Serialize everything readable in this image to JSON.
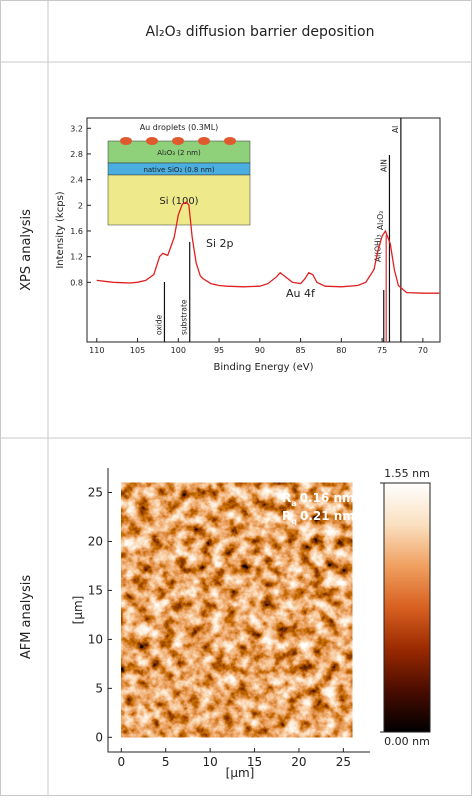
{
  "header": {
    "title": "Al₂O₃ diffusion barrier deposition"
  },
  "rows": [
    {
      "label": "XPS analysis"
    },
    {
      "label": "AFM analysis"
    }
  ],
  "chart_data": [
    {
      "type": "line",
      "xlabel": "Binding Energy (eV)",
      "ylabel": "Intensity (kcps)",
      "color": "#e02020",
      "xlim": [
        111.2,
        67.9
      ],
      "xticks": [
        110,
        105,
        100,
        95,
        90,
        85,
        80,
        75,
        70
      ],
      "ylim": [
        -0.13,
        3.36
      ],
      "yticks": [
        0.8,
        1.2,
        1.6,
        2.0,
        2.4,
        2.8,
        3.2
      ],
      "x": [
        110,
        108,
        106,
        105,
        104,
        103,
        102.3,
        101.9,
        101.3,
        100.5,
        100,
        99.5,
        99,
        98.7,
        98.3,
        97.8,
        97.3,
        97,
        96,
        95,
        94,
        92,
        90,
        89,
        88,
        87.5,
        87,
        86,
        85,
        84.5,
        84,
        83.5,
        83,
        82,
        80,
        78,
        77,
        76,
        75.5,
        75,
        74.6,
        74,
        73.5,
        73,
        72,
        70,
        68
      ],
      "values": [
        0.83,
        0.8,
        0.79,
        0.8,
        0.83,
        0.92,
        1.2,
        1.25,
        1.22,
        1.5,
        1.85,
        2.02,
        2.05,
        2.0,
        1.5,
        1.1,
        0.9,
        0.86,
        0.78,
        0.75,
        0.74,
        0.73,
        0.74,
        0.78,
        0.88,
        0.95,
        0.9,
        0.8,
        0.78,
        0.85,
        0.95,
        0.92,
        0.8,
        0.74,
        0.73,
        0.75,
        0.8,
        1.0,
        1.3,
        1.52,
        1.6,
        1.4,
        1.0,
        0.75,
        0.64,
        0.63,
        0.63
      ],
      "annotations": [
        "Si 2p",
        "Au 4f"
      ],
      "reference_lines": [
        {
          "label": "oxide",
          "x": 101.7,
          "color": "#111111"
        },
        {
          "label": "substrate",
          "x": 98.6,
          "color": "#111111"
        },
        {
          "label": "Al(OH)₃",
          "x": 74.8,
          "color": "#111111"
        },
        {
          "label": "Al₂O₃",
          "x": 74.5,
          "color": "#e03030"
        },
        {
          "label": "AlN",
          "x": 74.1,
          "color": "#111111"
        },
        {
          "label": "Al",
          "x": 72.7,
          "color": "#111111"
        }
      ],
      "inset": {
        "layers": [
          "Au droplets (0.3ML)",
          "Al₂O₃ (2 nm)",
          "native SiO₂ (0.8 nm)",
          "Si (100)"
        ]
      }
    },
    {
      "type": "image",
      "xlabel": "[µm]",
      "ylabel": "[µm]",
      "xlim": [
        -1.5,
        28
      ],
      "xticks": [
        0,
        5,
        10,
        15,
        20,
        25
      ],
      "ylim": [
        -1.5,
        27.5
      ],
      "yticks": [
        0,
        5,
        10,
        15,
        20,
        25
      ],
      "colormap": [
        "#000000",
        "#4a0c00",
        "#9a2a00",
        "#d86020",
        "#f0a060",
        "#fae0c0",
        "#ffffff"
      ],
      "clim": [
        0,
        1.55
      ],
      "cticks": [
        {
          "value": 0,
          "label": "0.00 nm"
        },
        {
          "value": 1.55,
          "label": "1.55 nm"
        }
      ],
      "roughness": [
        {
          "symbol": "R",
          "sub": "a",
          "text": "0.16 nm"
        },
        {
          "symbol": "R",
          "sub": "q",
          "text": "0.21 nm"
        }
      ]
    }
  ]
}
